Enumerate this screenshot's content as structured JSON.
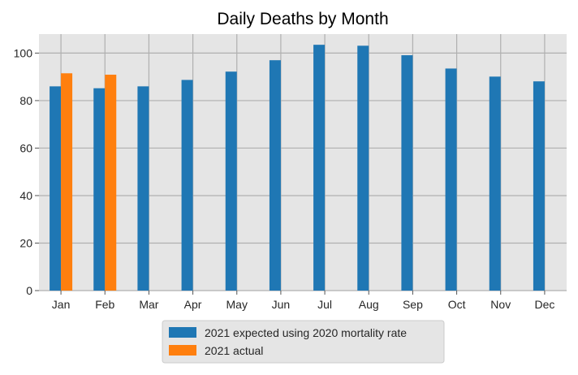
{
  "chart_data": {
    "type": "bar",
    "title": "Daily Deaths by Month",
    "xlabel": "",
    "ylabel": "",
    "categories": [
      "Jan",
      "Feb",
      "Mar",
      "Apr",
      "May",
      "Jun",
      "Jul",
      "Aug",
      "Sep",
      "Oct",
      "Nov",
      "Dec"
    ],
    "series": [
      {
        "name": "2021 expected using 2020 mortality rate",
        "color": "#1f77b4",
        "values": [
          86,
          85.2,
          86,
          88.7,
          92.2,
          97,
          103.5,
          103.1,
          99.1,
          93.5,
          90.1,
          88.1
        ]
      },
      {
        "name": "2021 actual",
        "color": "#ff7f0e",
        "values": [
          91.5,
          90.9,
          null,
          null,
          null,
          null,
          null,
          null,
          null,
          null,
          null,
          null
        ]
      }
    ],
    "ylim": [
      0,
      108
    ],
    "yticks": [
      0,
      20,
      40,
      60,
      80,
      100
    ],
    "grid": true,
    "legend_position": "bottom-center",
    "background_color": "#e5e5e5",
    "grid_color": "#b0b0b0"
  }
}
